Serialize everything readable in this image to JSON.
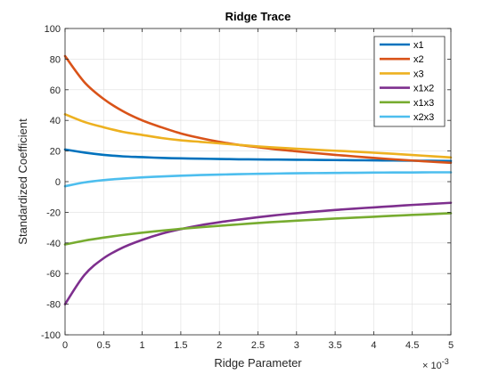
{
  "chart_data": {
    "type": "line",
    "title": "Ridge Trace",
    "xlabel": "Ridge Parameter",
    "ylabel": "Standardized Coefficient",
    "x_exponent_base": "× 10",
    "x_exponent_power": "-3",
    "xlim": [
      0,
      5
    ],
    "ylim": [
      -100,
      100
    ],
    "xticks": [
      0,
      0.5,
      1,
      1.5,
      2,
      2.5,
      3,
      3.5,
      4,
      4.5,
      5
    ],
    "xtick_labels": [
      "0",
      "0.5",
      "1",
      "1.5",
      "2",
      "2.5",
      "3",
      "3.5",
      "4",
      "4.5",
      "5"
    ],
    "yticks": [
      -100,
      -80,
      -60,
      -40,
      -20,
      0,
      20,
      40,
      60,
      80,
      100
    ],
    "ytick_labels": [
      "-100",
      "-80",
      "-60",
      "-40",
      "-20",
      "0",
      "20",
      "40",
      "60",
      "80",
      "100"
    ],
    "grid": true,
    "legend_position": "top-right",
    "x": [
      0,
      0.25,
      0.5,
      0.75,
      1,
      1.25,
      1.5,
      1.75,
      2,
      2.25,
      2.5,
      2.75,
      3,
      3.25,
      3.5,
      3.75,
      4,
      4.25,
      4.5,
      4.75,
      5
    ],
    "series": [
      {
        "name": "x1",
        "color": "#0072BD",
        "values": [
          21,
          19,
          17.5,
          16.5,
          16,
          15.5,
          15.2,
          15,
          14.8,
          14.6,
          14.5,
          14.4,
          14.3,
          14.2,
          14.1,
          14,
          13.9,
          13.8,
          13.7,
          13.6,
          13.5
        ]
      },
      {
        "name": "x2",
        "color": "#D95319",
        "values": [
          82,
          65,
          54,
          46,
          40,
          35.5,
          31.5,
          28.5,
          26,
          24,
          22.5,
          21,
          19.8,
          18.6,
          17.5,
          16.5,
          15.5,
          14.6,
          13.8,
          13,
          12.3
        ]
      },
      {
        "name": "x3",
        "color": "#EDB120",
        "values": [
          44,
          39,
          35.5,
          32.5,
          30.5,
          28.5,
          27,
          26,
          25,
          24,
          23,
          22.2,
          21.5,
          20.8,
          20.2,
          19.6,
          18.9,
          18.2,
          17.4,
          16.6,
          15.8
        ]
      },
      {
        "name": "x1x2",
        "color": "#7E2F8E",
        "values": [
          -80,
          -61,
          -50,
          -43,
          -38,
          -34,
          -31,
          -28.5,
          -26.5,
          -24.8,
          -23.2,
          -21.8,
          -20.6,
          -19.5,
          -18.5,
          -17.6,
          -16.8,
          -16,
          -15.2,
          -14.5,
          -13.8
        ]
      },
      {
        "name": "x1x3",
        "color": "#77AC30",
        "values": [
          -41,
          -38.5,
          -36.5,
          -34.8,
          -33.3,
          -32,
          -30.8,
          -29.8,
          -28.8,
          -27.9,
          -27,
          -26.2,
          -25.5,
          -24.8,
          -24.1,
          -23.5,
          -22.9,
          -22.3,
          -21.7,
          -21.2,
          -20.6
        ]
      },
      {
        "name": "x2x3",
        "color": "#4DBEEE",
        "values": [
          -3,
          -0.5,
          1,
          2,
          2.8,
          3.4,
          3.9,
          4.3,
          4.6,
          4.9,
          5.1,
          5.3,
          5.5,
          5.6,
          5.7,
          5.8,
          5.9,
          6,
          6,
          6.1,
          6.1
        ]
      }
    ]
  }
}
